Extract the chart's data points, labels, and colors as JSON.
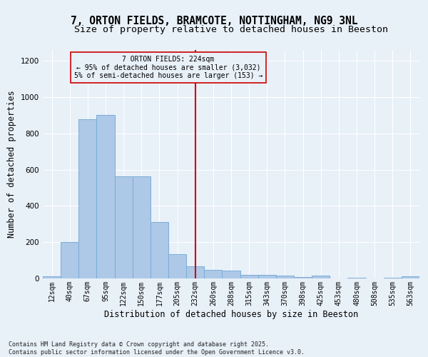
{
  "title_line1": "7, ORTON FIELDS, BRAMCOTE, NOTTINGHAM, NG9 3NL",
  "title_line2": "Size of property relative to detached houses in Beeston",
  "xlabel": "Distribution of detached houses by size in Beeston",
  "ylabel": "Number of detached properties",
  "footnote": "Contains HM Land Registry data © Crown copyright and database right 2025.\nContains public sector information licensed under the Open Government Licence v3.0.",
  "bar_labels": [
    "12sqm",
    "40sqm",
    "67sqm",
    "95sqm",
    "122sqm",
    "150sqm",
    "177sqm",
    "205sqm",
    "232sqm",
    "260sqm",
    "288sqm",
    "315sqm",
    "343sqm",
    "370sqm",
    "398sqm",
    "425sqm",
    "453sqm",
    "480sqm",
    "508sqm",
    "535sqm",
    "563sqm"
  ],
  "bar_values": [
    10,
    200,
    880,
    900,
    565,
    565,
    310,
    135,
    65,
    48,
    45,
    18,
    18,
    16,
    8,
    15,
    0,
    2,
    0,
    2,
    10
  ],
  "bar_color": "#aec8e8",
  "bar_edgecolor": "#7aadd4",
  "vline_x": 8.0,
  "annotation_title": "7 ORTON FIELDS: 224sqm",
  "annotation_line2": "← 95% of detached houses are smaller (3,032)",
  "annotation_line3": "5% of semi-detached houses are larger (153) →",
  "annotation_box_color": "#cc0000",
  "ylim": [
    0,
    1260
  ],
  "yticks": [
    0,
    200,
    400,
    600,
    800,
    1000,
    1200
  ],
  "bg_color": "#e8f0f8",
  "grid_color": "#ffffff",
  "title_fontsize": 10.5,
  "subtitle_fontsize": 9.5,
  "axis_label_fontsize": 8.5,
  "tick_fontsize": 7.0
}
